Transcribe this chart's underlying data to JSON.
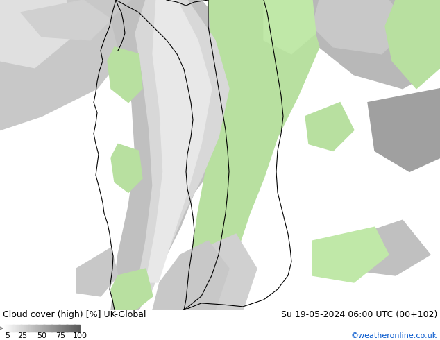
{
  "title_left": "Cloud cover (high) [%] UK-Global",
  "title_right": "Su 19-05-2024 06:00 UTC (00+102)",
  "credit": "©weatheronline.co.uk",
  "colorbar_label_texts": [
    "5",
    "25",
    "50",
    "75",
    "100"
  ],
  "bg_color": "#ffffff",
  "font_size_label": 9,
  "font_size_credit": 8,
  "credit_color": "#0055cc",
  "map_bg": "#ffffff",
  "cloud_gray_light": "#d8d8d8",
  "cloud_gray_mid": "#b8b8b8",
  "cloud_gray_dark": "#909090",
  "clear_green": "#b8e0a0",
  "border_color": "#000000",
  "sea_color": "#ffffff"
}
